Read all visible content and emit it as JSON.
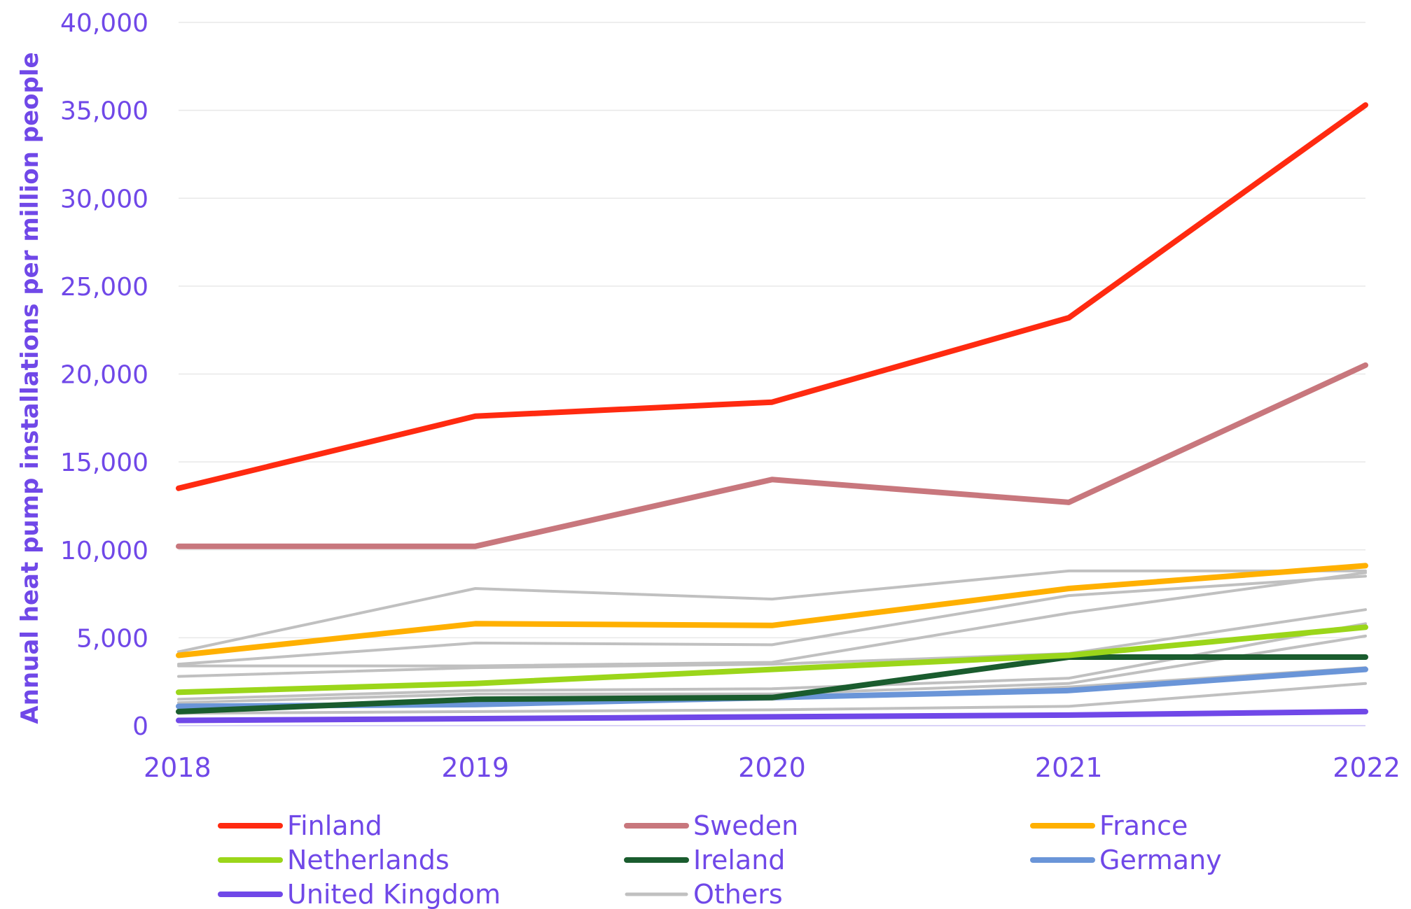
{
  "chart_data": {
    "type": "line",
    "title": "",
    "xlabel": "",
    "ylabel": "Annual heat pump installations per million people",
    "x": [
      "2018",
      "2019",
      "2020",
      "2021",
      "2022"
    ],
    "ylim": [
      0,
      40000
    ],
    "yticks": [
      "0",
      "5,000",
      "10,000",
      "15,000",
      "20,000",
      "25,000",
      "30,000",
      "35,000",
      "40,000"
    ],
    "ytick_values": [
      0,
      5000,
      10000,
      15000,
      20000,
      25000,
      30000,
      35000,
      40000
    ],
    "grid": "horizontal",
    "legend_position": "bottom",
    "text_color": "#7048e8",
    "series": [
      {
        "name": "Others",
        "color": "#c0c0c0",
        "legend": false,
        "values": [
          4200,
          7800,
          7200,
          8800,
          8800
        ]
      },
      {
        "name": "Others",
        "color": "#c0c0c0",
        "legend": false,
        "values": [
          3500,
          4700,
          4600,
          7400,
          8500
        ]
      },
      {
        "name": "Others",
        "color": "#c0c0c0",
        "legend": false,
        "values": [
          3400,
          3400,
          3600,
          6400,
          8700
        ]
      },
      {
        "name": "Others",
        "color": "#c0c0c0",
        "legend": false,
        "values": [
          2800,
          3300,
          3500,
          4100,
          6600
        ]
      },
      {
        "name": "Others",
        "color": "#c0c0c0",
        "legend": false,
        "values": [
          1500,
          2000,
          2100,
          2700,
          5800
        ]
      },
      {
        "name": "Others",
        "color": "#c0c0c0",
        "legend": false,
        "values": [
          1300,
          1800,
          1800,
          2400,
          5100
        ]
      },
      {
        "name": "Others",
        "color": "#c0c0c0",
        "legend": false,
        "values": [
          1000,
          1200,
          1500,
          2200,
          3300
        ]
      },
      {
        "name": "Others",
        "color": "#c0c0c0",
        "legend": false,
        "values": [
          700,
          800,
          900,
          1100,
          2400
        ]
      },
      {
        "name": "Germany",
        "color": "#6a95d8",
        "values": [
          1100,
          1200,
          1600,
          2000,
          3200
        ]
      },
      {
        "name": "United Kingdom",
        "color": "#7048e8",
        "values": [
          300,
          400,
          500,
          600,
          800
        ]
      },
      {
        "name": "Ireland",
        "color": "#1a5c2e",
        "values": [
          800,
          1500,
          1600,
          3900,
          3900
        ]
      },
      {
        "name": "Netherlands",
        "color": "#9bd61a",
        "values": [
          1900,
          2400,
          3200,
          4000,
          5600
        ]
      },
      {
        "name": "France",
        "color": "#ffb000",
        "values": [
          4000,
          5800,
          5700,
          7800,
          9100
        ]
      },
      {
        "name": "Sweden",
        "color": "#c8777d",
        "values": [
          10200,
          10200,
          14000,
          12700,
          20500
        ]
      },
      {
        "name": "Finland",
        "color": "#ff2a10",
        "values": [
          13500,
          17600,
          18400,
          23200,
          35300
        ]
      }
    ],
    "legend": [
      {
        "name": "Finland",
        "color": "#ff2a10"
      },
      {
        "name": "Sweden",
        "color": "#c8777d"
      },
      {
        "name": "France",
        "color": "#ffb000"
      },
      {
        "name": "Netherlands",
        "color": "#9bd61a"
      },
      {
        "name": "Ireland",
        "color": "#1a5c2e"
      },
      {
        "name": "Germany",
        "color": "#6a95d8"
      },
      {
        "name": "United Kingdom",
        "color": "#7048e8"
      },
      {
        "name": "Others",
        "color": "#c0c0c0"
      }
    ]
  }
}
